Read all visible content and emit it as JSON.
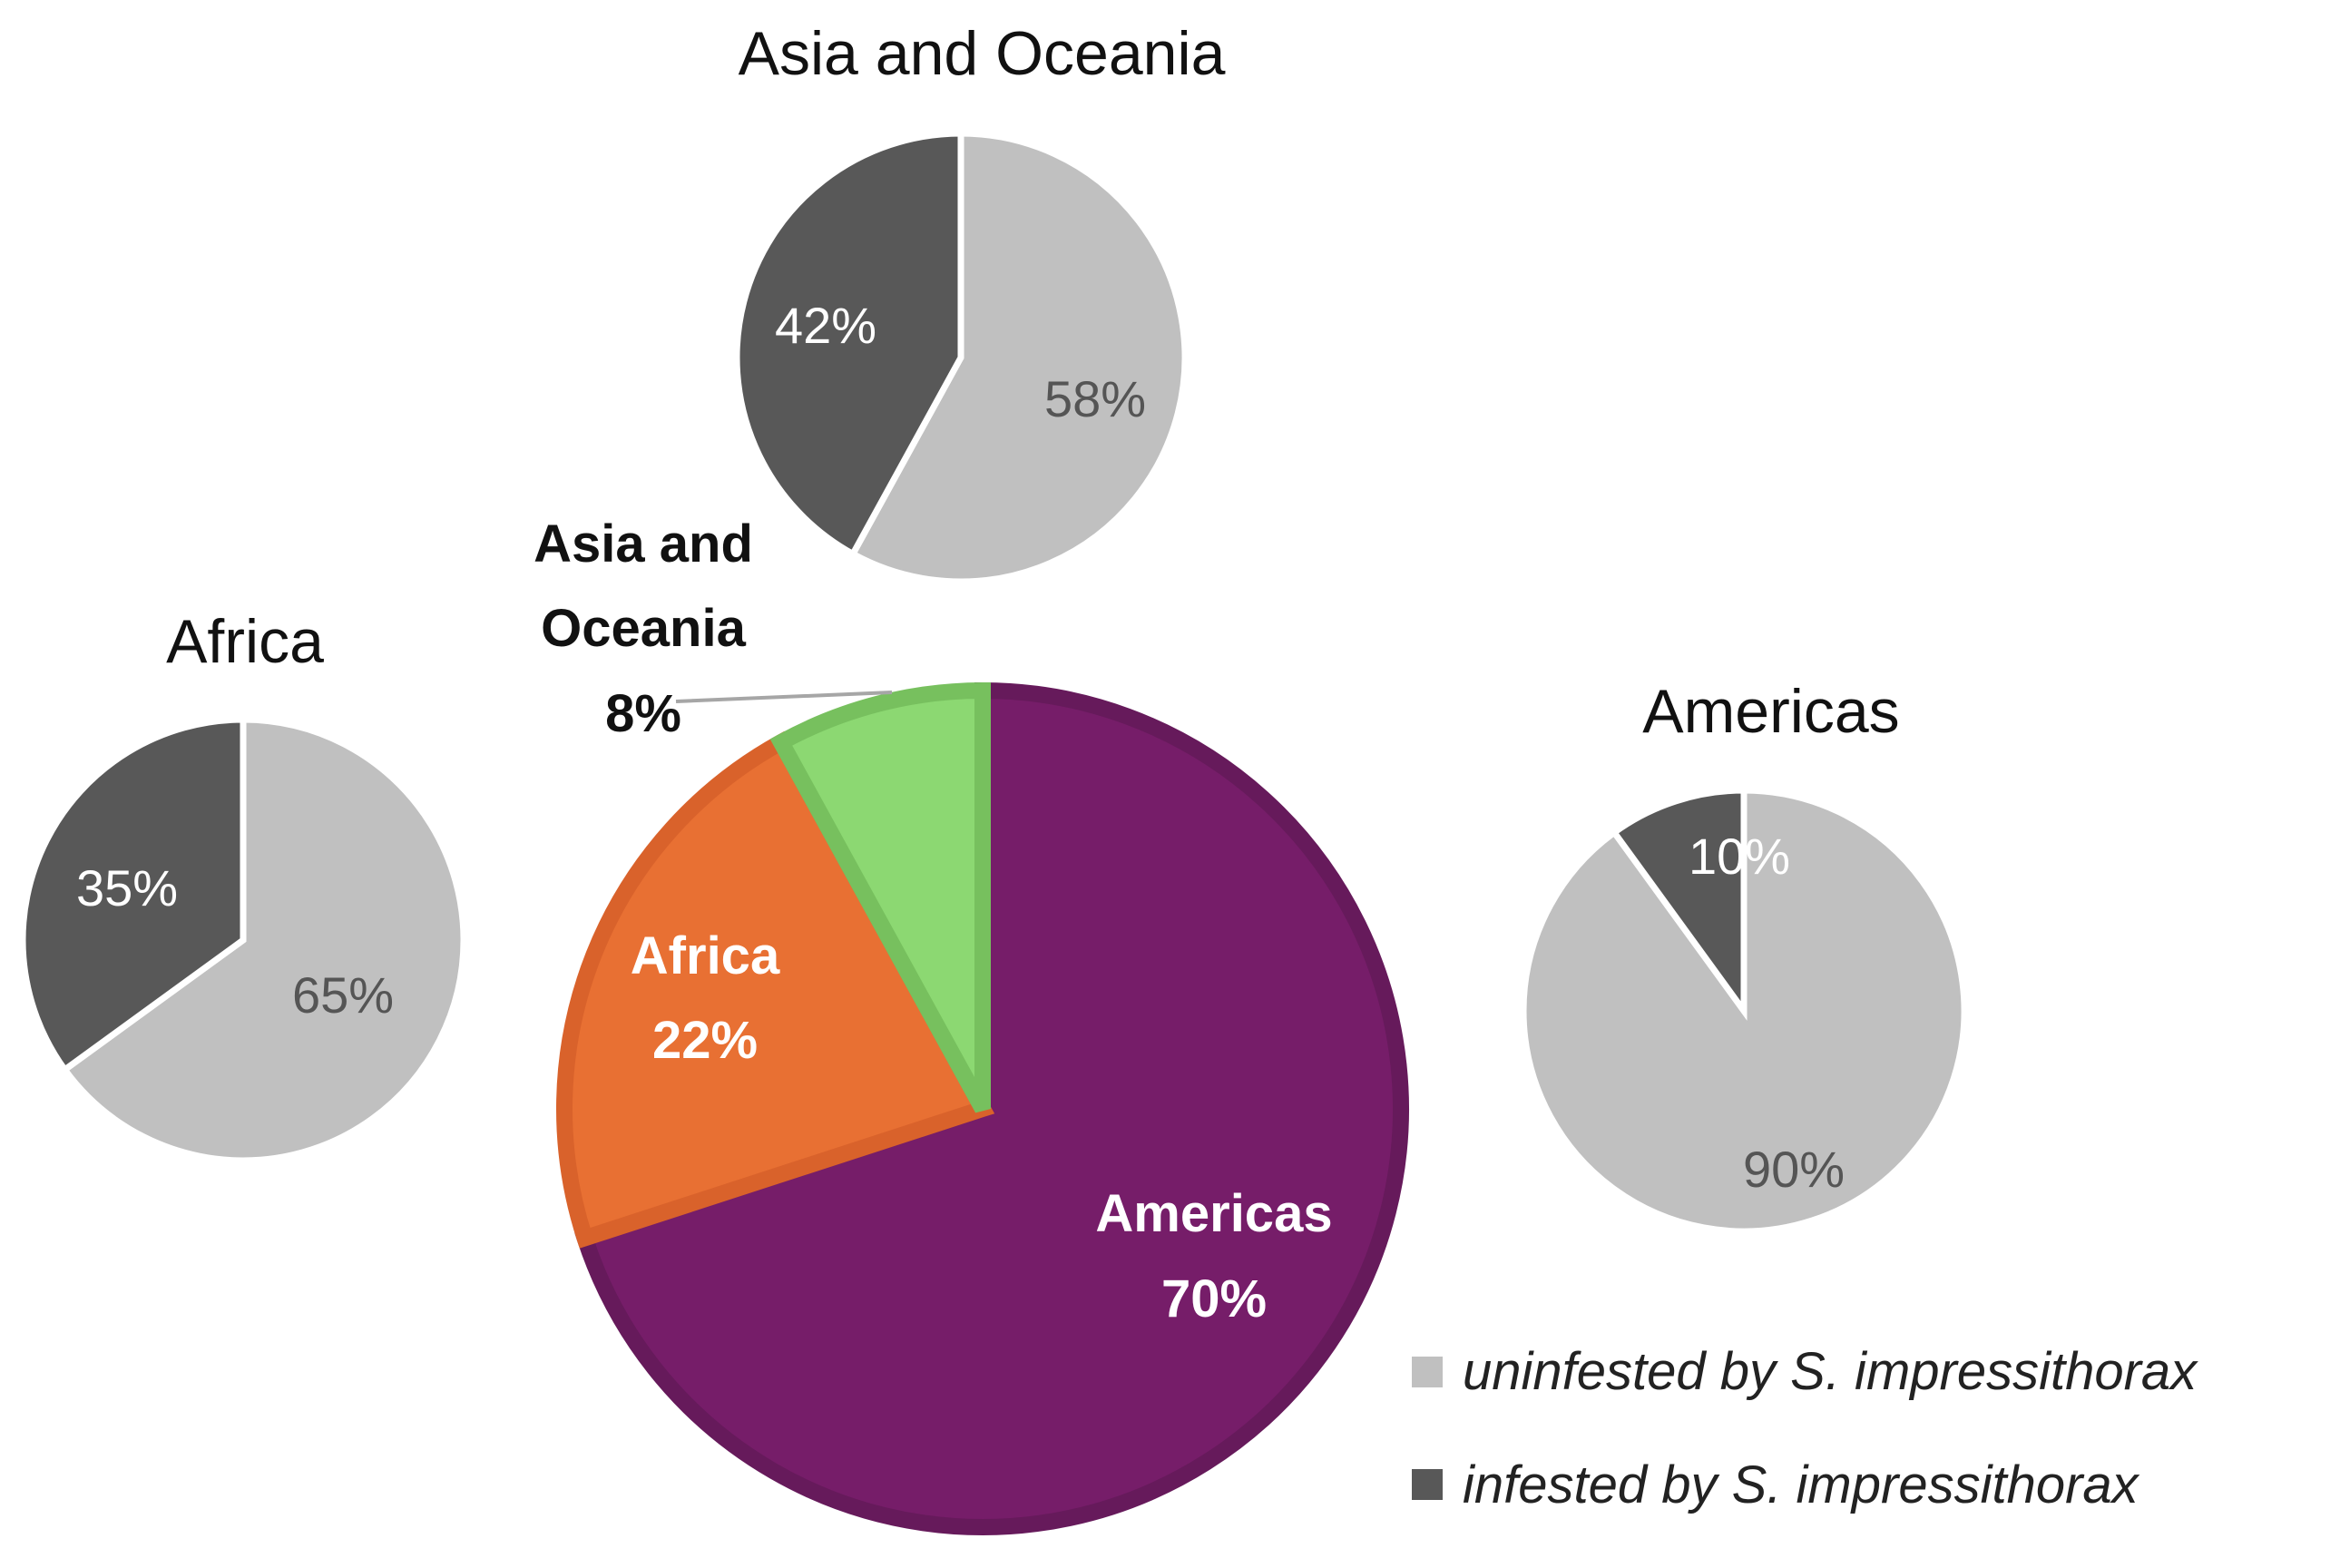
{
  "chart_data": [
    {
      "type": "pie",
      "title": "",
      "slices": [
        {
          "label": "Americas",
          "value": 70,
          "value_label": "70%",
          "color": "#761d69",
          "border": "#661a5b",
          "label_color": "#ffffff"
        },
        {
          "label": "Africa",
          "value": 22,
          "value_label": "22%",
          "color": "#e87033",
          "border": "#d9622b",
          "label_color": "#ffffff"
        },
        {
          "label": "Asia and Oceania",
          "value": 8,
          "value_label": "8%",
          "color": "#8cd872",
          "border": "#77c05e",
          "label_color": "#111111"
        }
      ]
    },
    {
      "type": "pie",
      "title": "Asia and Oceania",
      "slices": [
        {
          "series": "uninfested",
          "value": 58,
          "value_label": "58%"
        },
        {
          "series": "infested",
          "value": 42,
          "value_label": "42%"
        }
      ]
    },
    {
      "type": "pie",
      "title": "Africa",
      "slices": [
        {
          "series": "uninfested",
          "value": 65,
          "value_label": "65%"
        },
        {
          "series": "infested",
          "value": 35,
          "value_label": "35%"
        }
      ]
    },
    {
      "type": "pie",
      "title": "Americas",
      "slices": [
        {
          "series": "uninfested",
          "value": 90,
          "value_label": "90%"
        },
        {
          "series": "infested",
          "value": 10,
          "value_label": "10%"
        }
      ]
    }
  ],
  "legend": {
    "placement": "bottom-right",
    "items": [
      {
        "key": "uninfested",
        "label": "uninfested by S. impressithorax",
        "color": "#c0c0c0"
      },
      {
        "key": "infested",
        "label": "infested by S. impressithorax",
        "color": "#585858"
      }
    ]
  }
}
